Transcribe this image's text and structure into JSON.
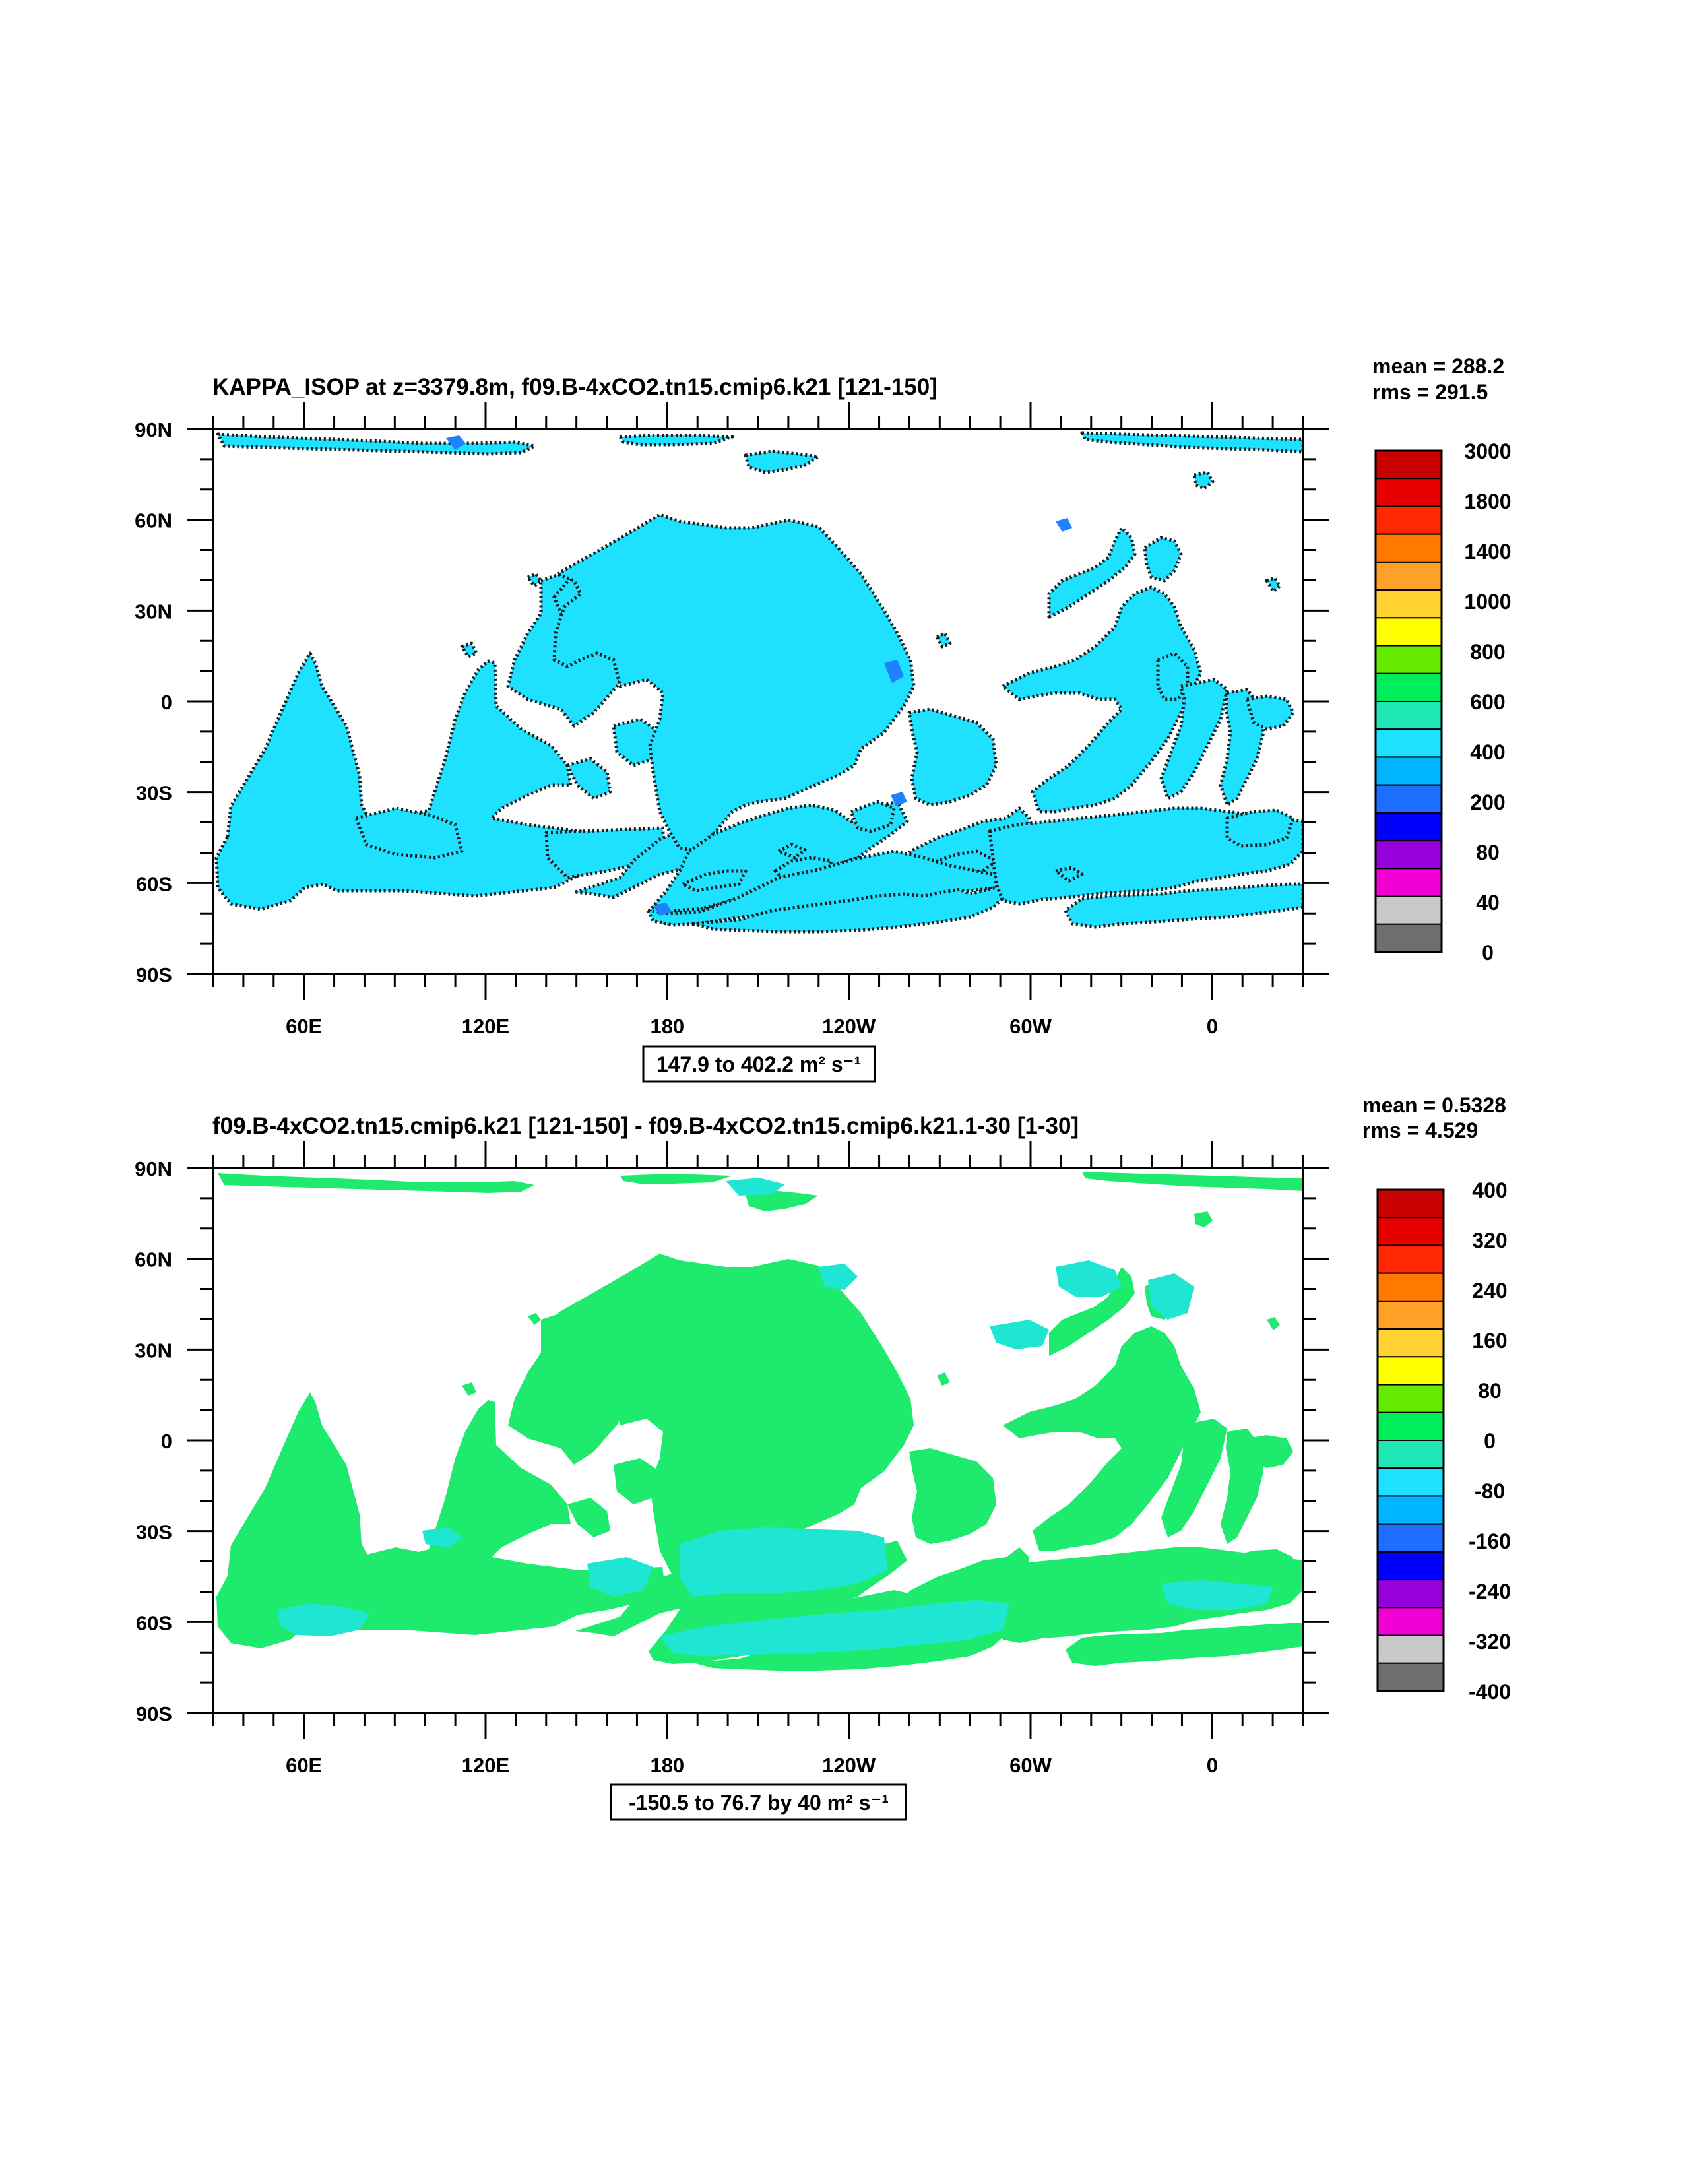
{
  "panels": [
    {
      "title": "KAPPA_ISOP at z=3379.8m, f09.B-4xCO2.tn15.cmip6.k21 [121-150]",
      "mean_label": "mean = 288.2",
      "rms_label": "rms = 291.5",
      "range_label": "147.9 to 402.2 m² s⁻¹",
      "fill_color": "#1ee0ff",
      "secondary_color": "#1e82ff",
      "contour_color": "#000000",
      "colorbar": {
        "labels": [
          "3000",
          "1800",
          "1400",
          "1000",
          "800",
          "600",
          "400",
          "200",
          "80",
          "40",
          "0"
        ],
        "colors": [
          "#c80000",
          "#e60000",
          "#ff2800",
          "#ff7800",
          "#ffa028",
          "#ffd232",
          "#ffff00",
          "#64eb00",
          "#00ee5a",
          "#1ee6b4",
          "#1ee0ff",
          "#00b4ff",
          "#1e6eff",
          "#0000ff",
          "#9600dc",
          "#f000d2",
          "#c8c8c8",
          "#6e6e6e"
        ]
      }
    },
    {
      "title": "f09.B-4xCO2.tn15.cmip6.k21 [121-150] - f09.B-4xCO2.tn15.cmip6.k21.1-30 [1-30]",
      "mean_label": "mean = 0.5328",
      "rms_label": "rms = 4.529",
      "range_label": "-150.5 to 76.7 by 40 m² s⁻¹",
      "fill_color": "#1eeb6e",
      "secondary_color": "#1ee6d2",
      "colorbar": {
        "labels": [
          "400",
          "320",
          "240",
          "160",
          "80",
          "0",
          "-80",
          "-160",
          "-240",
          "-320",
          "-400"
        ],
        "colors": [
          "#c80000",
          "#e60000",
          "#ff2800",
          "#ff7800",
          "#ffa028",
          "#ffd232",
          "#ffff00",
          "#64eb00",
          "#00ee5a",
          "#1ee6b4",
          "#1ee0ff",
          "#00b4ff",
          "#1e6eff",
          "#0000ff",
          "#9600dc",
          "#f000d2",
          "#c8c8c8",
          "#6e6e6e"
        ]
      }
    }
  ],
  "chart_data": [
    {
      "type": "heatmap",
      "title": "KAPPA_ISOP at z=3379.8m, f09.B-4xCO2.tn15.cmip6.k21 [121-150]",
      "projection": "cylindrical equidistant, centered 200E",
      "x_range_deg_east": [
        30,
        390
      ],
      "y_range_deg": [
        -90,
        90
      ],
      "xtick_labels": [
        "60E",
        "120E",
        "180",
        "120W",
        "60W",
        "0"
      ],
      "ytick_labels": [
        "90N",
        "60N",
        "30N",
        "0",
        "30S",
        "60S",
        "90S"
      ],
      "field_min": 147.9,
      "field_max": 402.2,
      "units": "m2 s-1",
      "mean": 288.2,
      "rms": 291.5,
      "dominant_level_interval": [
        200,
        400
      ],
      "colorbar_levels": [
        3000,
        1800,
        1400,
        1000,
        800,
        600,
        400,
        200,
        80,
        40,
        0
      ]
    },
    {
      "type": "heatmap",
      "title": "f09.B-4xCO2.tn15.cmip6.k21 [121-150] - f09.B-4xCO2.tn15.cmip6.k21.1-30 [1-30]",
      "projection": "cylindrical equidistant, centered 200E",
      "x_range_deg_east": [
        30,
        390
      ],
      "y_range_deg": [
        -90,
        90
      ],
      "xtick_labels": [
        "60E",
        "120E",
        "180",
        "120W",
        "60W",
        "0"
      ],
      "ytick_labels": [
        "90N",
        "60N",
        "30N",
        "0",
        "30S",
        "60S",
        "90S"
      ],
      "field_min": -150.5,
      "field_max": 76.7,
      "contour_interval": 40,
      "units": "m2 s-1",
      "mean": 0.5328,
      "rms": 4.529,
      "dominant_level_interval": [
        0,
        80
      ],
      "colorbar_levels": [
        400,
        320,
        240,
        160,
        80,
        0,
        -80,
        -160,
        -240,
        -320,
        -400
      ]
    }
  ]
}
